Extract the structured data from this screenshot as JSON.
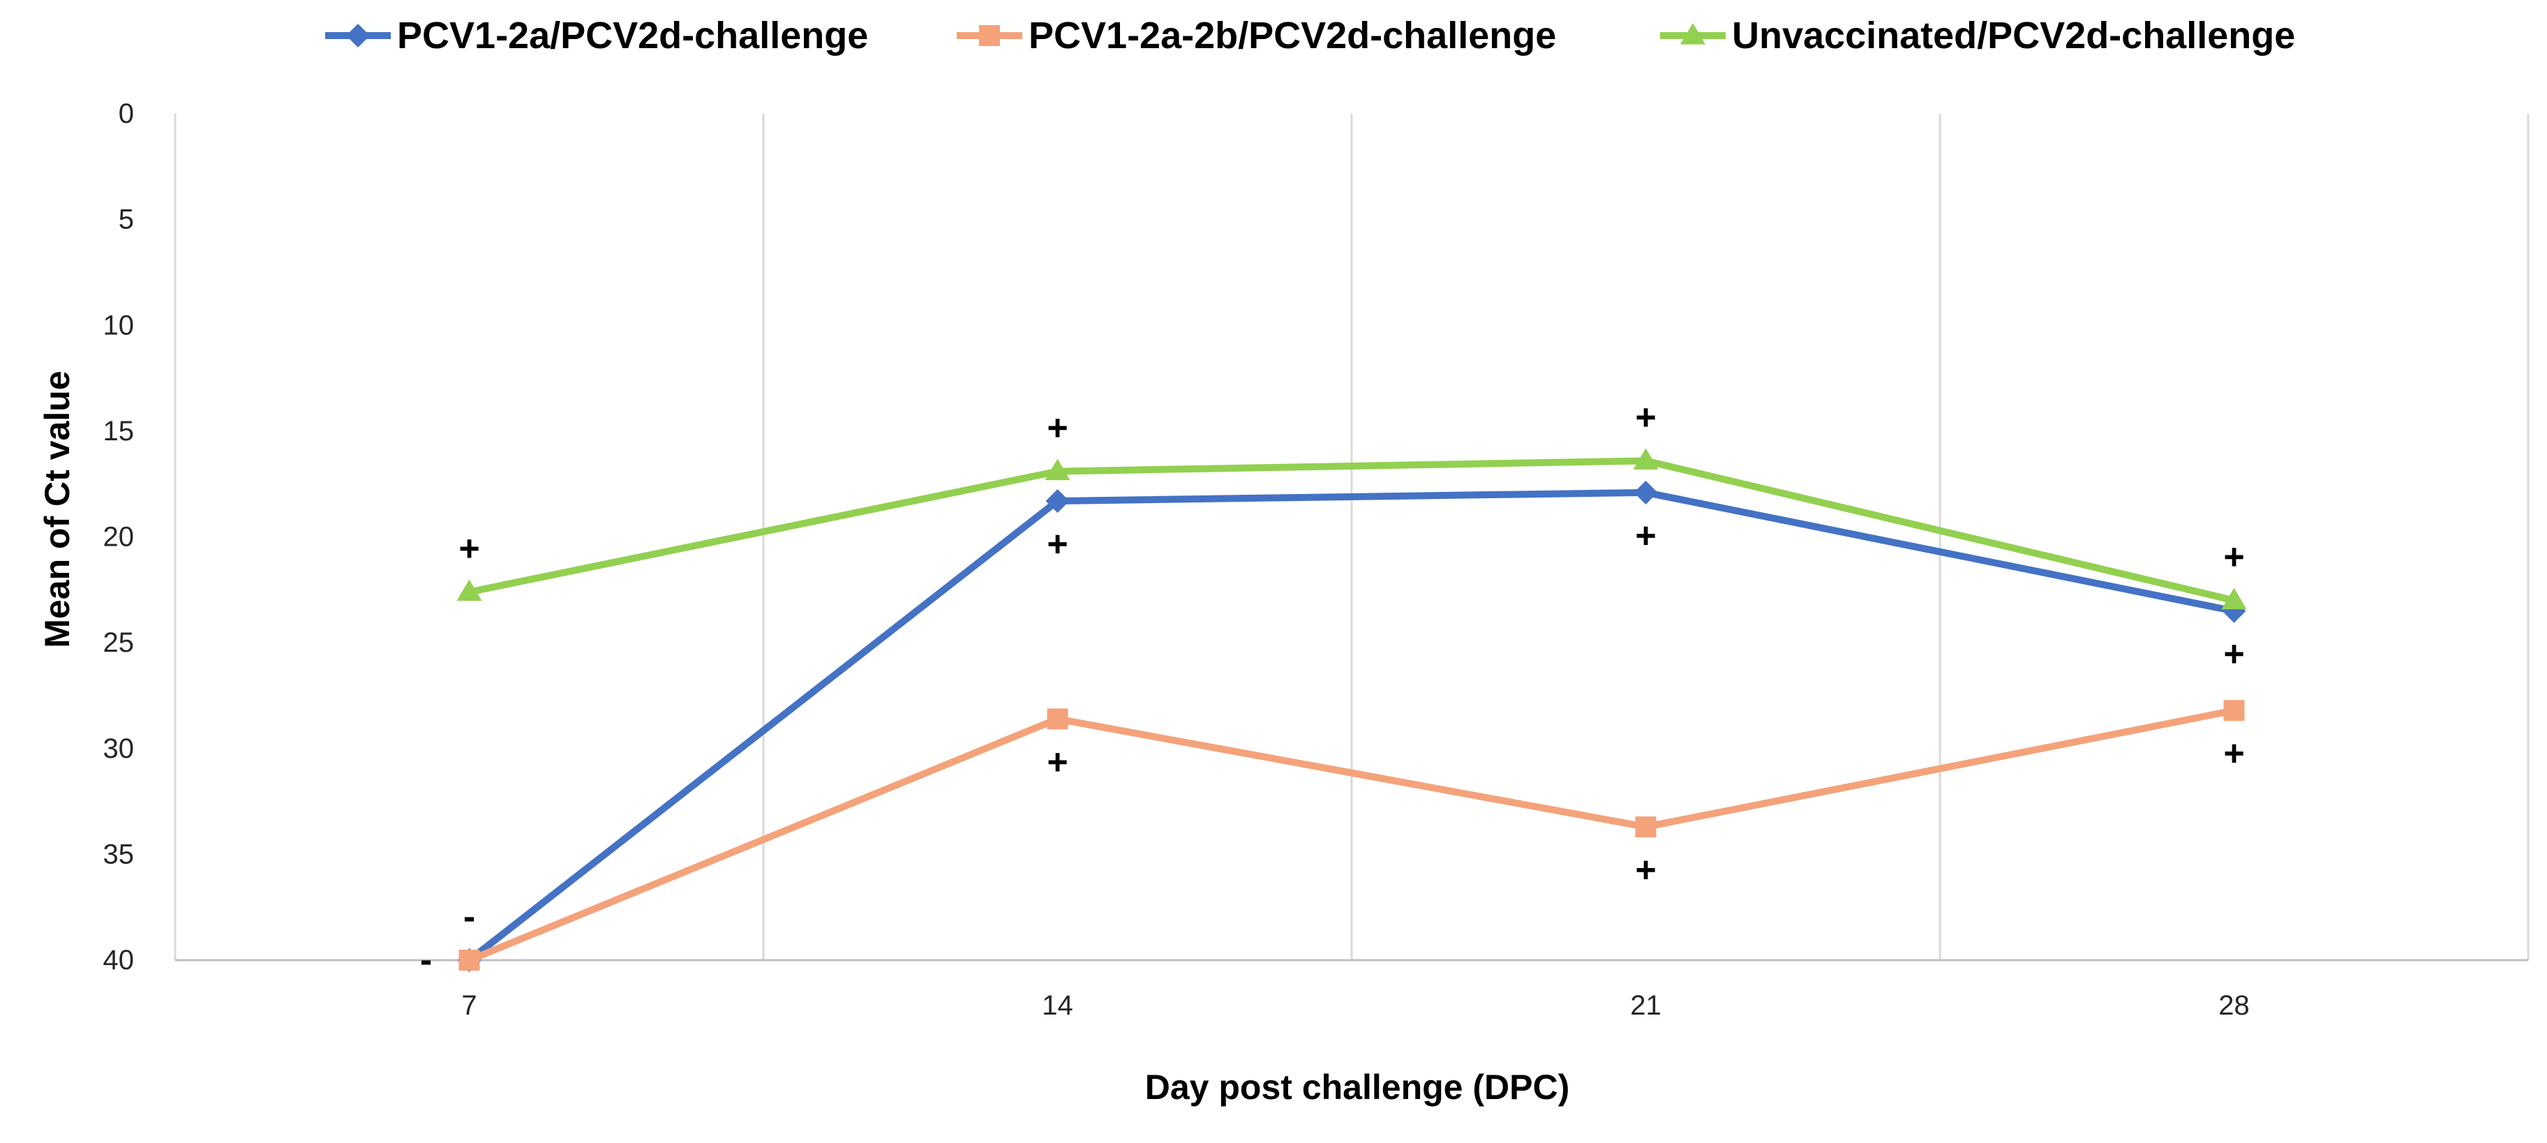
{
  "chart_data": {
    "type": "line",
    "xlabel": "Day post challenge (DPC)",
    "ylabel": "Mean of Ct value",
    "categories": [
      "7",
      "14",
      "21",
      "28"
    ],
    "ylim": [
      0,
      40
    ],
    "y_reversed": true,
    "y_ticks": [
      0,
      5,
      10,
      15,
      20,
      25,
      30,
      35,
      40
    ],
    "grid": {
      "vertical": true,
      "horizontal": false
    },
    "legend_position": "top",
    "series": [
      {
        "name": "PCV1-2a/PCV2d-challenge",
        "color": "#4472C4",
        "values": [
          40,
          18.3,
          17.9,
          23.5
        ],
        "labels": [
          "-",
          "+",
          "+",
          "+"
        ],
        "label_position": [
          "above",
          "below",
          "below",
          "below"
        ]
      },
      {
        "name": "PCV1-2a-2b/PCV2d-challenge",
        "color": "#F4A27A",
        "values": [
          40,
          28.6,
          33.7,
          28.2
        ],
        "labels": [
          "-",
          "+",
          "+",
          "+"
        ],
        "label_position": [
          "left",
          "below",
          "below",
          "below"
        ]
      },
      {
        "name": "Unvaccinated/PCV2d-challenge",
        "color": "#92D050",
        "values": [
          22.6,
          16.9,
          16.4,
          23.0
        ],
        "labels": [
          "+",
          "+",
          "+",
          "+"
        ],
        "label_position": [
          "above",
          "above",
          "above",
          "above"
        ]
      }
    ]
  }
}
